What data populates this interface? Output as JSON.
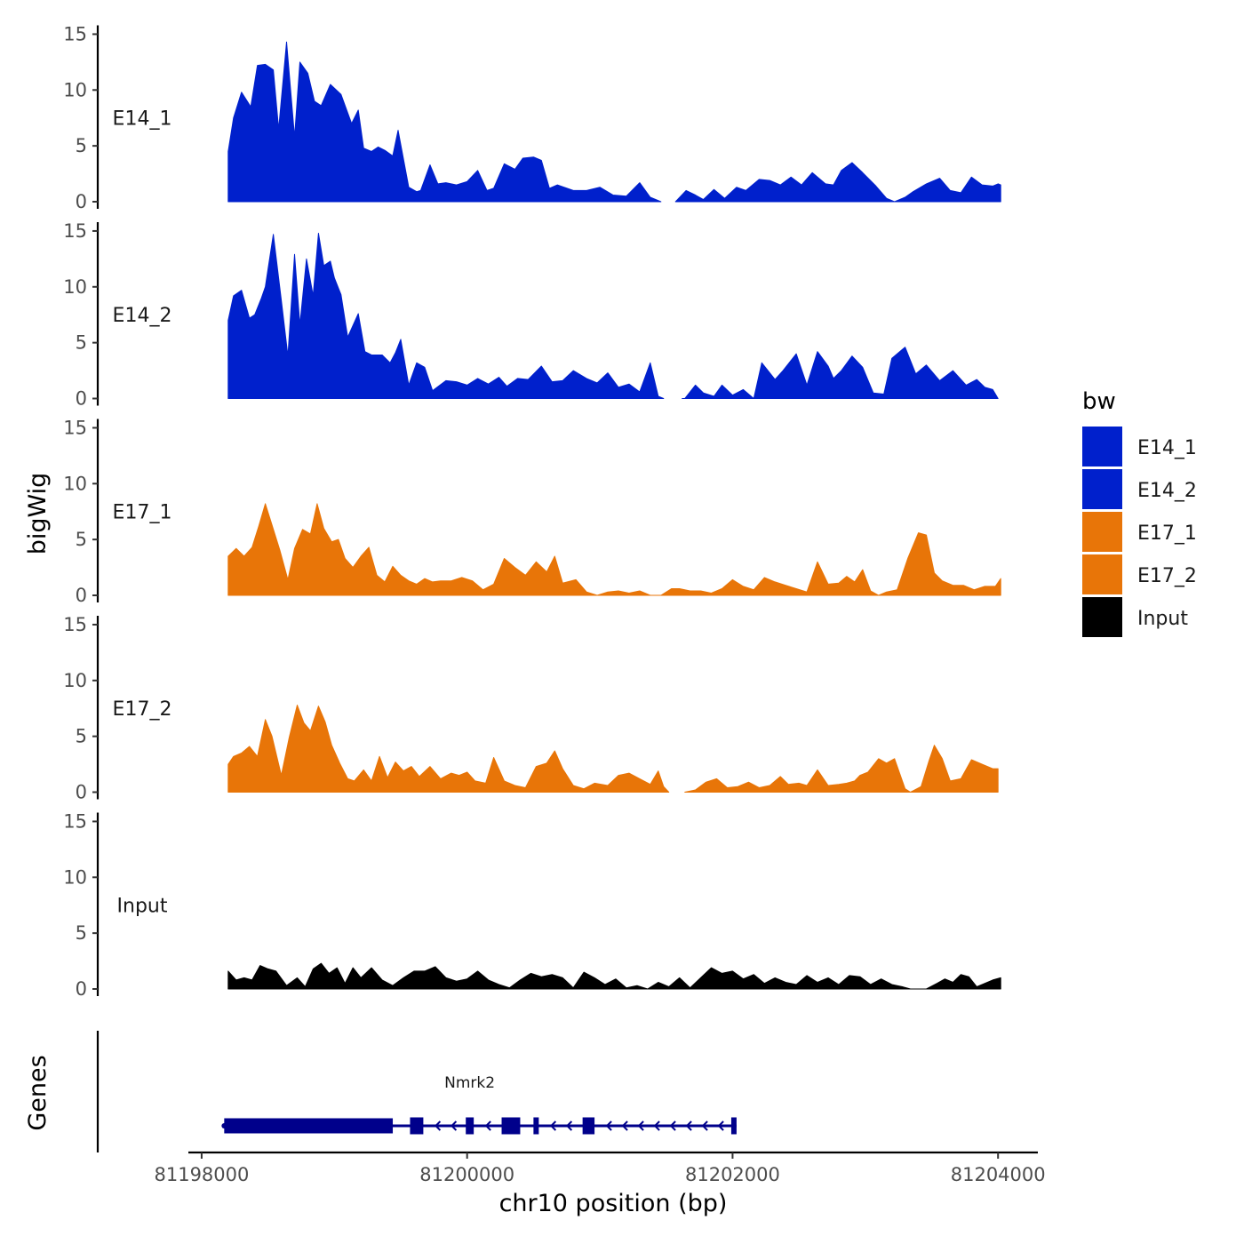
{
  "chart_data": {
    "type": "area",
    "chromosome": "chr10",
    "xlabel": "chr10 position (bp)",
    "ylabel": "bigWig",
    "gene_track_label": "Genes",
    "xlim": [
      81197900,
      81204300
    ],
    "data_range": [
      81198200,
      81204020
    ],
    "xticks": [
      81198000,
      81200000,
      81202000,
      81204000
    ],
    "xtick_labels": [
      "81198000",
      "81200000",
      "81202000",
      "81204000"
    ],
    "ylim": [
      0,
      15
    ],
    "yticks": [
      0,
      5,
      10,
      15
    ],
    "ytick_labels": [
      "0",
      "5",
      "10",
      "15"
    ],
    "legend": {
      "title": "bw",
      "entries": [
        {
          "label": "E14_1",
          "color": "#0020CC"
        },
        {
          "label": "E14_2",
          "color": "#0020CC"
        },
        {
          "label": "E17_1",
          "color": "#E87508"
        },
        {
          "label": "E17_2",
          "color": "#E87508"
        },
        {
          "label": "Input",
          "color": "#000000"
        }
      ]
    },
    "series": [
      {
        "name": "E14_1",
        "color": "#0020CC",
        "x": [
          81198200,
          81198240,
          81198300,
          81198370,
          81198420,
          81198480,
          81198540,
          81198580,
          81198640,
          81198700,
          81198740,
          81198800,
          81198850,
          81198900,
          81198970,
          81199050,
          81199130,
          81199180,
          81199220,
          81199280,
          81199330,
          81199380,
          81199440,
          81199480,
          81199560,
          81199620,
          81199650,
          81199720,
          81199780,
          81199840,
          81199920,
          81200000,
          81200080,
          81200150,
          81200200,
          81200280,
          81200360,
          81200420,
          81200500,
          81200560,
          81200620,
          81200680,
          81200800,
          81200900,
          81201000,
          81201100,
          81201200,
          81201300,
          81201380,
          81201460,
          81201540,
          81201570,
          81201650,
          81201720,
          81201780,
          81201860,
          81201940,
          81202030,
          81202100,
          81202200,
          81202280,
          81202360,
          81202440,
          81202520,
          81202600,
          81202700,
          81202760,
          81202820,
          81202900,
          81202980,
          81203080,
          81203160,
          81203220,
          81203300,
          81203360,
          81203460,
          81203560,
          81203640,
          81203720,
          81203800,
          81203880,
          81203960,
          81204000,
          81204020
        ],
        "values": [
          4.5,
          7.5,
          9.8,
          8.5,
          12.2,
          12.3,
          11.8,
          6.5,
          14.3,
          5.8,
          12.5,
          11.5,
          9.0,
          8.6,
          10.5,
          9.6,
          7.0,
          8.2,
          4.8,
          4.5,
          4.9,
          4.6,
          4.1,
          6.4,
          1.3,
          0.9,
          1.0,
          3.3,
          1.6,
          1.7,
          1.5,
          1.8,
          2.8,
          1.0,
          1.2,
          3.4,
          2.9,
          3.9,
          4.0,
          3.7,
          1.2,
          1.5,
          1.0,
          1.0,
          1.3,
          0.6,
          0.5,
          1.7,
          0.4,
          0.0,
          null,
          0.0,
          1.0,
          0.6,
          0.2,
          1.1,
          0.3,
          1.3,
          1.0,
          2.0,
          1.9,
          1.5,
          2.2,
          1.5,
          2.6,
          1.6,
          1.5,
          2.8,
          3.5,
          2.6,
          1.4,
          0.3,
          0.0,
          0.4,
          0.9,
          1.6,
          2.1,
          1.0,
          0.8,
          2.2,
          1.5,
          1.4,
          1.6,
          1.5
        ]
      },
      {
        "name": "E14_2",
        "color": "#0020CC",
        "x": [
          81198200,
          81198240,
          81198300,
          81198360,
          81198400,
          81198450,
          81198480,
          81198540,
          81198600,
          81198650,
          81198700,
          81198740,
          81198790,
          81198840,
          81198880,
          81198920,
          81198970,
          81199000,
          81199050,
          81199100,
          81199180,
          81199230,
          81199280,
          81199360,
          81199420,
          81199460,
          81199500,
          81199560,
          81199620,
          81199680,
          81199740,
          81199840,
          81199920,
          81200000,
          81200080,
          81200160,
          81200240,
          81200300,
          81200380,
          81200460,
          81200560,
          81200640,
          81200720,
          81200800,
          81200900,
          81200980,
          81201060,
          81201140,
          81201220,
          81201300,
          81201380,
          81201440,
          81201480,
          81201520,
          81201560,
          81201620,
          81201640,
          81201720,
          81201780,
          81201860,
          81201920,
          81202000,
          81202080,
          81202160,
          81202220,
          81202320,
          81202380,
          81202480,
          81202560,
          81202640,
          81202720,
          81202760,
          81202820,
          81202900,
          81202980,
          81203060,
          81203140,
          81203200,
          81203300,
          81203380,
          81203460,
          81203560,
          81203660,
          81203760,
          81203840,
          81203900,
          81203960,
          81204000
        ],
        "values": [
          7.0,
          9.2,
          9.7,
          7.2,
          7.5,
          9.0,
          10.0,
          14.7,
          8.8,
          3.8,
          12.9,
          6.6,
          12.5,
          9.2,
          14.8,
          11.9,
          12.3,
          10.8,
          9.3,
          5.5,
          7.6,
          4.2,
          3.9,
          3.9,
          3.2,
          4.1,
          5.3,
          1.2,
          3.2,
          2.8,
          0.7,
          1.6,
          1.5,
          1.2,
          1.8,
          1.3,
          1.9,
          1.1,
          1.8,
          1.7,
          2.9,
          1.5,
          1.6,
          2.5,
          1.8,
          1.4,
          2.3,
          1.0,
          1.3,
          0.6,
          3.2,
          0.2,
          0.0,
          null,
          null,
          0.0,
          0.0,
          1.2,
          0.5,
          0.2,
          1.2,
          0.3,
          0.8,
          0.0,
          3.2,
          1.7,
          2.5,
          4.0,
          1.2,
          4.2,
          2.9,
          1.8,
          2.5,
          3.8,
          2.8,
          0.5,
          0.4,
          3.6,
          4.6,
          2.2,
          3.0,
          1.6,
          2.5,
          1.2,
          1.7,
          1.0,
          0.8,
          0.0
        ]
      },
      {
        "name": "E17_1",
        "color": "#E87508",
        "x": [
          81198200,
          81198260,
          81198320,
          81198380,
          81198430,
          81198480,
          81198530,
          81198590,
          81198650,
          81198700,
          81198760,
          81198820,
          81198870,
          81198920,
          81198980,
          81199030,
          81199080,
          81199140,
          81199200,
          81199260,
          81199320,
          81199380,
          81199440,
          81199500,
          81199560,
          81199620,
          81199680,
          81199740,
          81199800,
          81199880,
          81199960,
          81200040,
          81200120,
          81200200,
          81200280,
          81200360,
          81200440,
          81200520,
          81200600,
          81200660,
          81200720,
          81200820,
          81200900,
          81200980,
          81201060,
          81201140,
          81201220,
          81201300,
          81201380,
          81201460,
          81201540,
          81201600,
          81201680,
          81201760,
          81201840,
          81201920,
          81202000,
          81202080,
          81202160,
          81202240,
          81202320,
          81202400,
          81202480,
          81202560,
          81202640,
          81202720,
          81202800,
          81202860,
          81202920,
          81202980,
          81203040,
          81203100,
          81203160,
          81203240,
          81203320,
          81203400,
          81203460,
          81203520,
          81203580,
          81203660,
          81203740,
          81203820,
          81203900,
          81203980,
          81204020
        ],
        "values": [
          3.5,
          4.2,
          3.5,
          4.3,
          6.2,
          8.2,
          6.3,
          4.0,
          1.4,
          4.2,
          5.9,
          5.5,
          8.2,
          6.0,
          4.8,
          5.0,
          3.3,
          2.5,
          3.5,
          4.3,
          1.8,
          1.2,
          2.6,
          1.8,
          1.3,
          1.0,
          1.5,
          1.2,
          1.3,
          1.3,
          1.6,
          1.3,
          0.5,
          1.0,
          3.3,
          2.5,
          1.8,
          3.0,
          2.1,
          3.5,
          1.1,
          1.4,
          0.3,
          0.0,
          0.3,
          0.4,
          0.2,
          0.4,
          0.0,
          0.0,
          0.6,
          0.6,
          0.4,
          0.4,
          0.2,
          0.6,
          1.4,
          0.8,
          0.5,
          1.6,
          1.2,
          0.9,
          0.6,
          0.3,
          3.0,
          1.0,
          1.1,
          1.7,
          1.2,
          2.3,
          0.4,
          0.0,
          0.3,
          0.5,
          3.3,
          5.6,
          5.4,
          2.0,
          1.3,
          0.9,
          0.9,
          0.5,
          0.8,
          0.8,
          1.5
        ]
      },
      {
        "name": "E17_2",
        "color": "#E87508",
        "x": [
          81198200,
          81198240,
          81198300,
          81198360,
          81198420,
          81198480,
          81198530,
          81198600,
          81198660,
          81198720,
          81198770,
          81198820,
          81198880,
          81198930,
          81198980,
          81199040,
          81199100,
          81199150,
          81199220,
          81199280,
          81199340,
          81199400,
          81199460,
          81199520,
          81199580,
          81199640,
          81199720,
          81199800,
          81199880,
          81199940,
          81200000,
          81200060,
          81200140,
          81200200,
          81200280,
          81200360,
          81200440,
          81200520,
          81200600,
          81200660,
          81200720,
          81200800,
          81200880,
          81200960,
          81201060,
          81201140,
          81201220,
          81201300,
          81201380,
          81201440,
          81201480,
          81201520,
          81201600,
          81201640,
          81201720,
          81201800,
          81201880,
          81201960,
          81202040,
          81202120,
          81202200,
          81202280,
          81202360,
          81202420,
          81202500,
          81202560,
          81202640,
          81202720,
          81202800,
          81202860,
          81202920,
          81202960,
          81203020,
          81203100,
          81203160,
          81203220,
          81203300,
          81203340,
          81203420,
          81203480,
          81203520,
          81203580,
          81203640,
          81203720,
          81203800,
          81203880,
          81203960,
          81204000
        ],
        "values": [
          2.5,
          3.2,
          3.5,
          4.1,
          3.2,
          6.5,
          5.0,
          1.5,
          4.9,
          7.8,
          6.2,
          5.5,
          7.7,
          6.3,
          4.2,
          2.6,
          1.2,
          1.0,
          2.0,
          1.0,
          3.2,
          1.3,
          2.7,
          1.9,
          2.3,
          1.4,
          2.3,
          1.2,
          1.7,
          1.5,
          1.8,
          1.0,
          0.8,
          3.1,
          1.0,
          0.6,
          0.4,
          2.3,
          2.6,
          3.7,
          2.1,
          0.6,
          0.3,
          0.8,
          0.6,
          1.5,
          1.7,
          1.2,
          0.7,
          1.9,
          0.5,
          0.0,
          null,
          0.0,
          0.2,
          0.9,
          1.2,
          0.4,
          0.5,
          0.9,
          0.4,
          0.6,
          1.4,
          0.7,
          0.8,
          0.6,
          2.0,
          0.6,
          0.7,
          0.8,
          1.0,
          1.5,
          1.8,
          3.0,
          2.6,
          3.0,
          0.3,
          0.0,
          0.5,
          2.8,
          4.2,
          3.0,
          1.0,
          1.2,
          2.9,
          2.5,
          2.1,
          2.1
        ]
      },
      {
        "name": "Input",
        "color": "#000000",
        "x": [
          81198200,
          81198260,
          81198320,
          81198380,
          81198440,
          81198500,
          81198560,
          81198640,
          81198720,
          81198780,
          81198840,
          81198900,
          81198960,
          81199020,
          81199080,
          81199140,
          81199200,
          81199280,
          81199360,
          81199440,
          81199520,
          81199600,
          81199680,
          81199760,
          81199840,
          81199920,
          81200000,
          81200080,
          81200160,
          81200240,
          81200320,
          81200400,
          81200480,
          81200560,
          81200640,
          81200720,
          81200800,
          81200880,
          81200960,
          81201040,
          81201120,
          81201200,
          81201280,
          81201360,
          81201440,
          81201520,
          81201600,
          81201680,
          81201760,
          81201840,
          81201920,
          81202000,
          81202080,
          81202160,
          81202240,
          81202320,
          81202400,
          81202480,
          81202560,
          81202640,
          81202720,
          81202800,
          81202880,
          81202960,
          81203040,
          81203120,
          81203200,
          81203280,
          81203340,
          81203400,
          81203460,
          81203540,
          81203600,
          81203660,
          81203720,
          81203780,
          81203840,
          81203900,
          81203960,
          81204020
        ],
        "values": [
          1.6,
          0.8,
          1.0,
          0.8,
          2.1,
          1.8,
          1.6,
          0.3,
          1.0,
          0.2,
          1.8,
          2.3,
          1.4,
          1.9,
          0.5,
          1.9,
          1.0,
          1.9,
          0.8,
          0.3,
          1.0,
          1.6,
          1.6,
          2.0,
          1.0,
          0.7,
          0.9,
          1.6,
          0.8,
          0.4,
          0.1,
          0.8,
          1.4,
          1.1,
          1.3,
          1.0,
          0.1,
          1.5,
          1.0,
          0.4,
          0.9,
          0.1,
          0.3,
          0.0,
          0.6,
          0.2,
          1.0,
          0.1,
          1.0,
          1.9,
          1.4,
          1.6,
          0.9,
          1.3,
          0.5,
          1.0,
          0.6,
          0.4,
          1.2,
          0.6,
          1.0,
          0.4,
          1.2,
          1.1,
          0.4,
          0.9,
          0.4,
          0.2,
          0.0,
          0.0,
          0.0,
          0.5,
          0.9,
          0.6,
          1.3,
          1.1,
          0.2,
          0.5,
          0.8,
          1.0
        ]
      }
    ],
    "gene": {
      "name": "Nmrk2",
      "color": "#00008B",
      "strand": "-",
      "start": 81198170,
      "end": 81202030,
      "exons": [
        {
          "start": 81198170,
          "end": 81199440,
          "tall": false
        },
        {
          "start": 81199570,
          "end": 81199670,
          "tall": true
        },
        {
          "start": 81199990,
          "end": 81200050,
          "tall": true
        },
        {
          "start": 81200260,
          "end": 81200400,
          "tall": true
        },
        {
          "start": 81200500,
          "end": 81200540,
          "tall": true
        },
        {
          "start": 81200870,
          "end": 81200960,
          "tall": true
        },
        {
          "start": 81201990,
          "end": 81202030,
          "tall": true
        }
      ]
    }
  }
}
